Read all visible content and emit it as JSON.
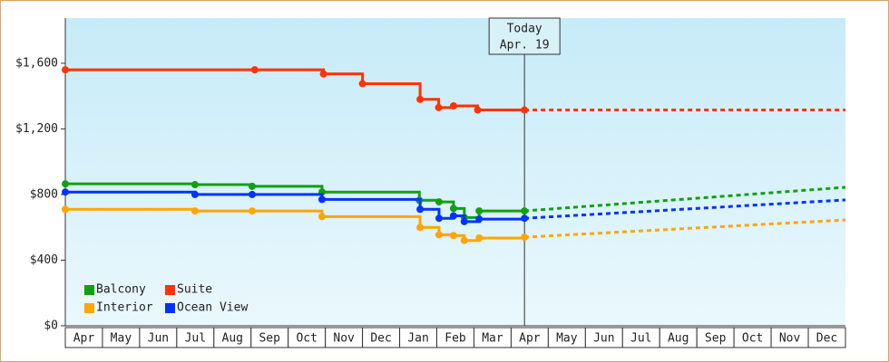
{
  "chart_data": {
    "type": "step-line",
    "xlim": [
      0,
      21
    ],
    "ylim": [
      0,
      1875
    ],
    "yticks": [
      {
        "value": 0,
        "label": "$0"
      },
      {
        "value": 400,
        "label": "$400"
      },
      {
        "value": 800,
        "label": "$800"
      },
      {
        "value": 1200,
        "label": "$1,200"
      },
      {
        "value": 1600,
        "label": "$1,600"
      }
    ],
    "xticks": [
      {
        "value": 0.5,
        "label": "Apr"
      },
      {
        "value": 1.5,
        "label": "May"
      },
      {
        "value": 2.5,
        "label": "Jun"
      },
      {
        "value": 3.5,
        "label": "Jul"
      },
      {
        "value": 4.5,
        "label": "Aug"
      },
      {
        "value": 5.5,
        "label": "Sep"
      },
      {
        "value": 6.5,
        "label": "Oct"
      },
      {
        "value": 7.5,
        "label": "Nov"
      },
      {
        "value": 8.5,
        "label": "Dec"
      },
      {
        "value": 9.5,
        "label": "Jan"
      },
      {
        "value": 10.5,
        "label": "Feb"
      },
      {
        "value": 11.5,
        "label": "Mar"
      },
      {
        "value": 12.5,
        "label": "Apr"
      },
      {
        "value": 13.5,
        "label": "May"
      },
      {
        "value": 14.5,
        "label": "Jun"
      },
      {
        "value": 15.5,
        "label": "Jul"
      },
      {
        "value": 16.5,
        "label": "Aug"
      },
      {
        "value": 17.5,
        "label": "Sep"
      },
      {
        "value": 18.5,
        "label": "Oct"
      },
      {
        "value": 19.5,
        "label": "Nov"
      },
      {
        "value": 20.5,
        "label": "Dec"
      }
    ],
    "today": {
      "x": 12.36,
      "label": "Today",
      "date": "Apr. 19"
    },
    "series": [
      {
        "name": "Balcony",
        "color": "#11a011",
        "x": [
          0,
          3.49,
          5.03,
          6.91,
          9.53,
          10.06,
          10.45,
          10.74,
          11.14,
          12.36
        ],
        "values": [
          865,
          860,
          850,
          815,
          765,
          755,
          715,
          660,
          700,
          700
        ],
        "projection_x": [
          12.36,
          21
        ],
        "projection_values": [
          700,
          844
        ]
      },
      {
        "name": "Suite",
        "color": "#ff3300",
        "x": [
          0,
          5.1,
          6.95,
          8.0,
          9.55,
          10.05,
          10.45,
          11.1,
          12.36
        ],
        "values": [
          1560,
          1560,
          1535,
          1475,
          1380,
          1330,
          1340,
          1315,
          1315
        ],
        "projection_x": [
          12.36,
          21
        ],
        "projection_values": [
          1315,
          1315
        ]
      },
      {
        "name": "Interior",
        "color": "#ffa500",
        "x": [
          0,
          3.49,
          5.03,
          6.91,
          9.55,
          10.06,
          10.45,
          10.74,
          11.14,
          12.36
        ],
        "values": [
          710,
          700,
          700,
          665,
          600,
          555,
          550,
          520,
          535,
          540
        ],
        "projection_x": [
          12.36,
          21
        ],
        "projection_values": [
          540,
          645
        ]
      },
      {
        "name": "Ocean View",
        "color": "#0033ff",
        "x": [
          0,
          3.49,
          5.03,
          6.91,
          9.55,
          10.06,
          10.45,
          10.74,
          11.14,
          12.36
        ],
        "values": [
          815,
          800,
          800,
          770,
          710,
          655,
          670,
          635,
          650,
          655
        ],
        "projection_x": [
          12.36,
          21
        ],
        "projection_values": [
          655,
          767
        ]
      }
    ]
  }
}
